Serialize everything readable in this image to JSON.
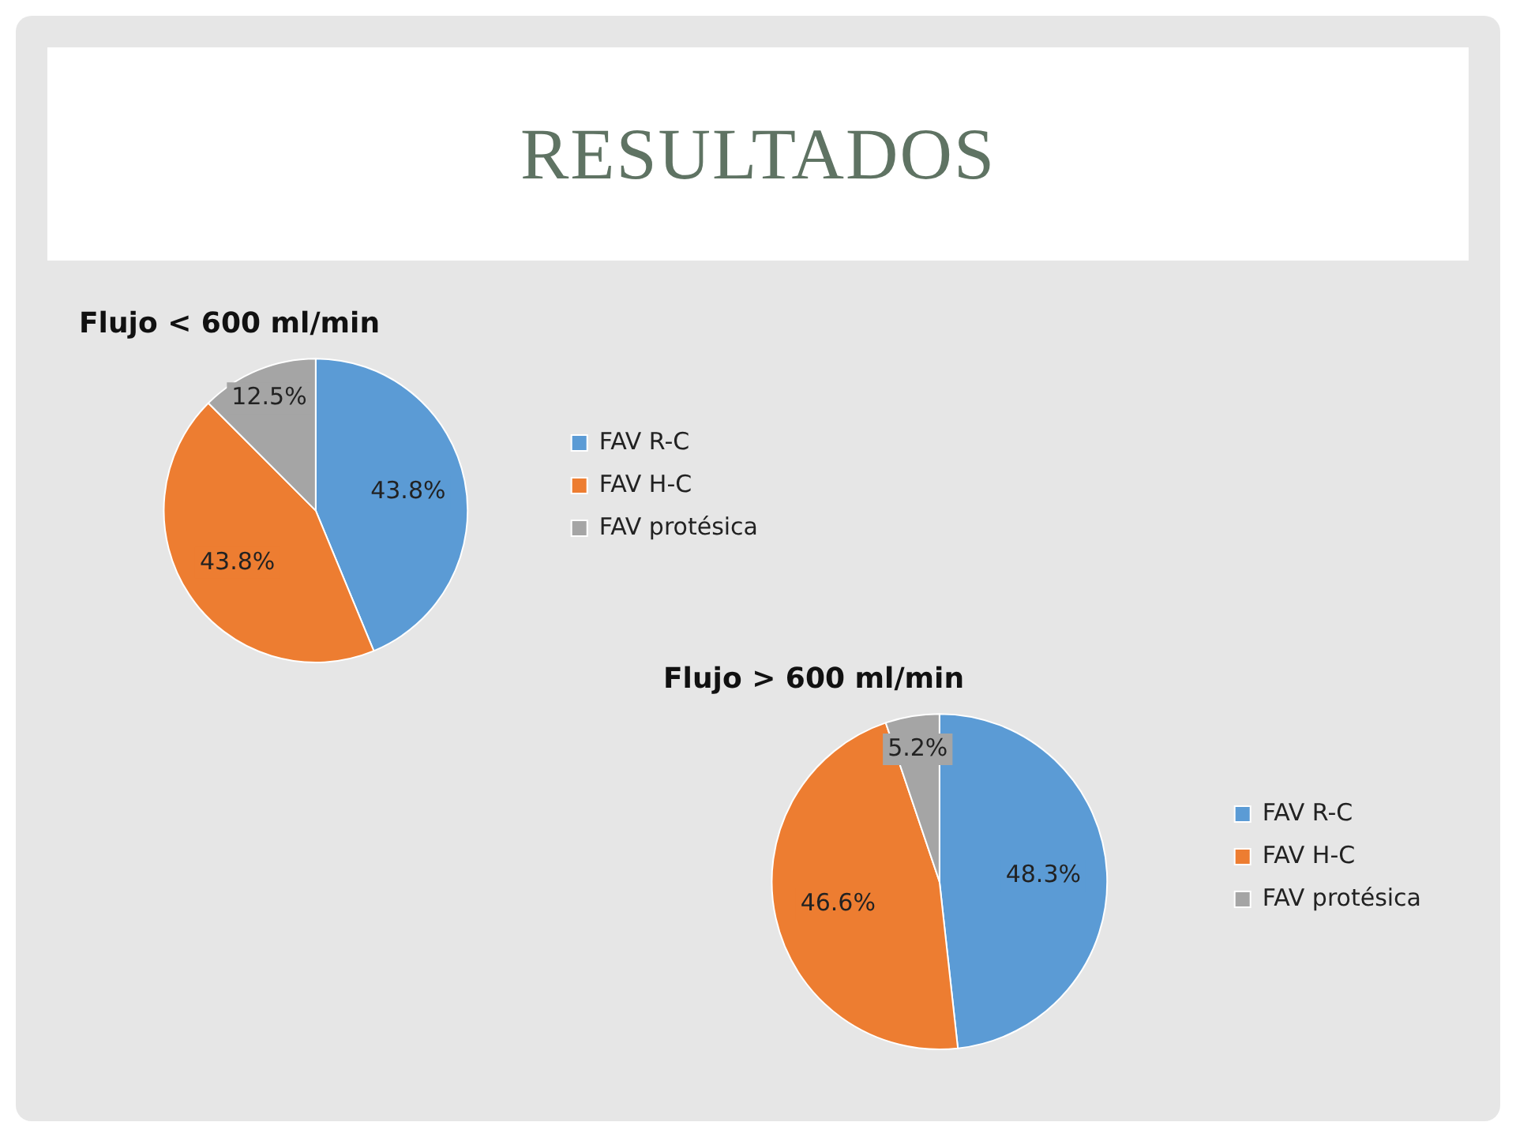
{
  "chart_data": [
    {
      "type": "other",
      "title": "RESULTADOS"
    },
    {
      "type": "pie",
      "title": "Flujo < 600 ml/min",
      "categories": [
        "FAV R-C",
        "FAV H-C",
        "FAV protésica"
      ],
      "values": [
        43.8,
        43.8,
        12.5
      ],
      "value_labels": [
        "43.8%",
        "43.8%",
        "12.5%"
      ],
      "colors": [
        "#5b9bd5",
        "#ed7d31",
        "#a5a5a5"
      ],
      "legend": "right"
    },
    {
      "type": "pie",
      "title": "Flujo > 600 ml/min",
      "categories": [
        "FAV R-C",
        "FAV H-C",
        "FAV protésica"
      ],
      "values": [
        48.3,
        46.6,
        5.2
      ],
      "value_labels": [
        "48.3%",
        "46.6%",
        "5.2%"
      ],
      "colors": [
        "#5b9bd5",
        "#ed7d31",
        "#a5a5a5"
      ],
      "legend": "right"
    }
  ]
}
